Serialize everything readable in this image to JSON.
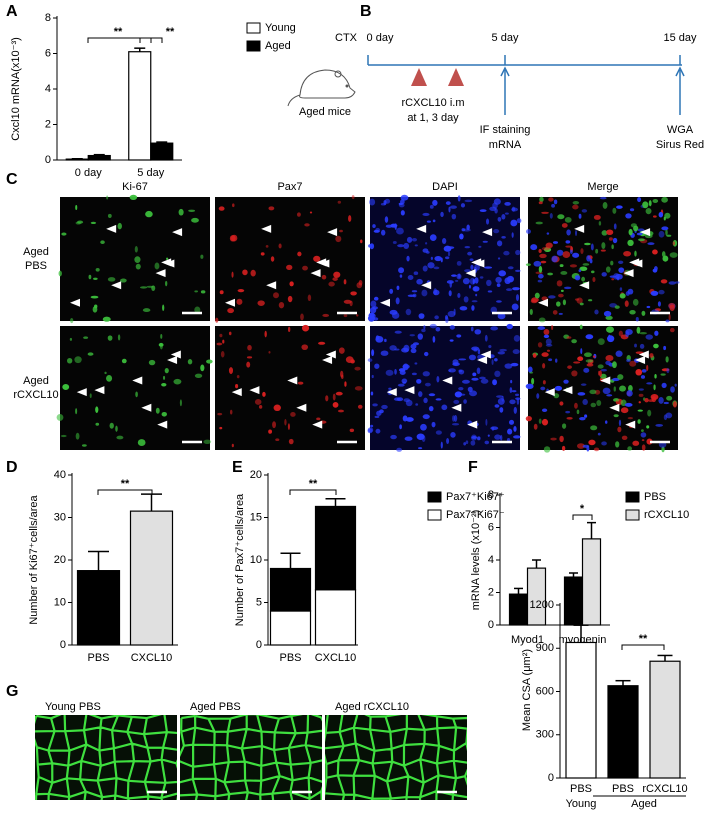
{
  "panel_labels": [
    "A",
    "B",
    "C",
    "D",
    "E",
    "F",
    "G"
  ],
  "chart_data": [
    {
      "type": "bar",
      "ylabel": "Cxcl10 mRNA(x10⁻³)",
      "categories": [
        "0 day",
        "5 day"
      ],
      "series": [
        {
          "name": "Young",
          "color": "#ffffff",
          "values": [
            0.05,
            6.1
          ],
          "errors": [
            0.02,
            0.2
          ]
        },
        {
          "name": "Aged",
          "color": "#000000",
          "values": [
            0.25,
            0.95
          ],
          "errors": [
            0.05,
            0.06
          ]
        }
      ],
      "ylim": [
        0,
        8
      ],
      "yticks": [
        0,
        2,
        4,
        6,
        8
      ],
      "annotations": [
        "**",
        "**"
      ]
    },
    {
      "type": "bar",
      "ylabel": "Number of Ki67⁺cells/area",
      "categories": [
        "PBS",
        "CXCL10"
      ],
      "values": [
        17.5,
        31.5
      ],
      "errors": [
        4.5,
        4
      ],
      "colors": [
        "#000000",
        "#e0e0e0"
      ],
      "ylim": [
        0,
        40
      ],
      "yticks": [
        0,
        10,
        20,
        30,
        40
      ],
      "annotations": [
        "**"
      ]
    },
    {
      "type": "bar",
      "stacked": true,
      "ylabel": "Number of Pax7⁺cells/area",
      "categories": [
        "PBS",
        "CXCL10"
      ],
      "series": [
        {
          "name": "Pax7⁺Ki67⁻",
          "color": "#ffffff",
          "values": [
            4,
            6.5
          ]
        },
        {
          "name": "Pax7⁺Ki67⁺",
          "color": "#000000",
          "values": [
            5,
            9.8
          ],
          "errors": [
            1.8,
            0.9
          ]
        }
      ],
      "ylim": [
        0,
        20
      ],
      "yticks": [
        0,
        5,
        10,
        15,
        20
      ],
      "annotations": [
        "**"
      ]
    },
    {
      "type": "bar",
      "ylabel": "mRNA levels (x10⁻²)",
      "categories": [
        "Myod1",
        "myogenin"
      ],
      "series": [
        {
          "name": "PBS",
          "color": "#000000",
          "values": [
            1.9,
            2.95
          ],
          "errors": [
            0.35,
            0.25
          ]
        },
        {
          "name": "rCXCL10",
          "color": "#e0e0e0",
          "values": [
            3.5,
            5.3
          ],
          "errors": [
            0.5,
            1.0
          ]
        }
      ],
      "ylim": [
        0,
        8
      ],
      "yticks": [
        0,
        2,
        4,
        6,
        8
      ],
      "annotations": [
        "*"
      ]
    },
    {
      "type": "bar",
      "ylabel": "Mean CSA (μm²)",
      "categories": [
        "PBS",
        "PBS",
        "rCXCL10"
      ],
      "values": [
        940,
        640,
        810
      ],
      "errors": [
        120,
        35,
        40
      ],
      "colors": [
        "#ffffff",
        "#000000",
        "#e0e0e0"
      ],
      "group_labels": [
        "Young",
        "Aged"
      ],
      "ylim": [
        0,
        1200
      ],
      "yticks": [
        0,
        300,
        600,
        900,
        1200
      ],
      "annotations": [
        "**"
      ]
    }
  ],
  "timeline": {
    "mouse_label": "Aged mice",
    "start": "CTX",
    "points": [
      "0 day",
      "5 day",
      "15 day"
    ],
    "injection": [
      "rCXCL10 i.m",
      "at 1, 3 day"
    ],
    "day5": [
      "IF staining",
      "mRNA"
    ],
    "day15": [
      "WGA",
      "Sirus Red"
    ]
  },
  "staining": {
    "columns": [
      "Ki-67",
      "Pax7",
      "DAPI",
      "Merge"
    ],
    "rows": [
      [
        "Aged",
        "PBS"
      ],
      [
        "Aged",
        "rCXCL10"
      ]
    ]
  },
  "wga": {
    "titles": [
      "Young PBS",
      "Aged PBS",
      "Aged rCXCL10"
    ]
  }
}
